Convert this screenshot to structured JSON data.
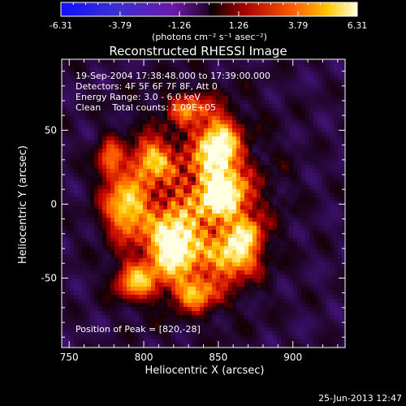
{
  "chart_data": {
    "type": "heatmap",
    "title": "Reconstructed RHESSI Image",
    "xlabel": "Heliocentric X (arcsec)",
    "ylabel": "Heliocentric Y (arcsec)",
    "xlim": [
      745,
      935
    ],
    "ylim": [
      -97,
      98
    ],
    "x_ticks": [
      750,
      800,
      850,
      900
    ],
    "y_ticks": [
      50,
      0,
      -50
    ],
    "colorbar": {
      "ticks": [
        "-6.31",
        "-3.79",
        "-1.26",
        "1.26",
        "3.79",
        "6.31"
      ],
      "range": [
        -6.31,
        6.31
      ],
      "unit_label": "(photons cm⁻² s⁻¹ asec⁻²)"
    },
    "annotations": [
      "19-Sep-2004 17:38:48.000 to 17:39:00.000",
      "Detectors: 4F 5F 6F 7F 8F, Att 0",
      "Energy Range: 3.0 - 6.0 keV",
      "Clean    Total counts: 1.09E+05"
    ],
    "peak_label": "Position of Peak = [820,-28]",
    "peak": [
      820,
      -28
    ],
    "peak_value": 6.31,
    "sources": [
      {
        "x": 820,
        "y": -28,
        "sx": 11,
        "sy": 14,
        "amp": 6.3
      },
      {
        "x": 850,
        "y": 38,
        "sx": 9,
        "sy": 14,
        "amp": 6.0
      },
      {
        "x": 853,
        "y": 5,
        "sx": 11,
        "sy": 11,
        "amp": 5.5
      },
      {
        "x": 788,
        "y": -2,
        "sx": 10,
        "sy": 14,
        "amp": 4.8
      },
      {
        "x": 805,
        "y": 30,
        "sx": 9,
        "sy": 9,
        "amp": 4.0
      },
      {
        "x": 860,
        "y": -35,
        "sx": 11,
        "sy": 10,
        "amp": 4.6
      },
      {
        "x": 795,
        "y": -52,
        "sx": 10,
        "sy": 9,
        "amp": 4.2
      },
      {
        "x": 835,
        "y": -60,
        "sx": 10,
        "sy": 8,
        "amp": 3.8
      },
      {
        "x": 870,
        "y": -20,
        "sx": 7,
        "sy": 8,
        "amp": 3.3
      },
      {
        "x": 830,
        "y": 65,
        "sx": 9,
        "sy": 7,
        "amp": 3.0
      },
      {
        "x": 777,
        "y": 30,
        "sx": 6,
        "sy": 10,
        "amp": 3.2
      }
    ],
    "footer_timestamp": "25-Jun-2013 12:47"
  }
}
